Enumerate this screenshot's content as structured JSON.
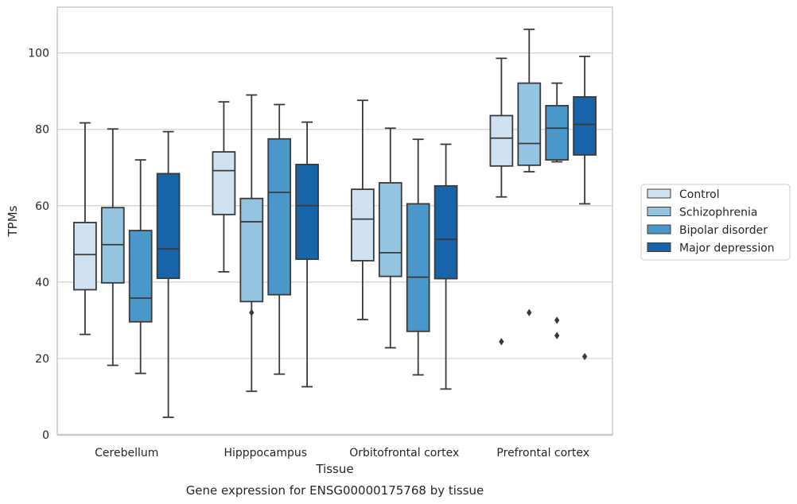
{
  "chart_data": {
    "type": "box",
    "caption": "Gene expression for ENSG00000175768 by tissue",
    "xlabel": "Tissue",
    "ylabel": "TPMs",
    "ylim": [
      0,
      112
    ],
    "yticks": [
      0,
      20,
      40,
      60,
      80,
      100
    ],
    "grid": true,
    "legend_position": "right",
    "categories": [
      "Cerebellum",
      "Hipppocampus",
      "Orbitofrontal cortex",
      "Prefrontal cortex"
    ],
    "series": [
      {
        "name": "Control",
        "color": "#d0e1f2",
        "boxes": [
          {
            "whislo": 26.3,
            "q1": 38.0,
            "med": 47.2,
            "q3": 55.6,
            "whishi": 81.7,
            "fliers": []
          },
          {
            "whislo": 42.7,
            "q1": 57.7,
            "med": 69.2,
            "q3": 74.1,
            "whishi": 87.2,
            "fliers": []
          },
          {
            "whislo": 30.2,
            "q1": 45.6,
            "med": 56.5,
            "q3": 64.3,
            "whishi": 87.6,
            "fliers": []
          },
          {
            "whislo": 62.3,
            "q1": 70.4,
            "med": 77.7,
            "q3": 83.6,
            "whishi": 98.6,
            "fliers": [
              24.4
            ]
          }
        ]
      },
      {
        "name": "Schizophrenia",
        "color": "#94c4df",
        "boxes": [
          {
            "whislo": 18.2,
            "q1": 39.8,
            "med": 49.8,
            "q3": 59.5,
            "whishi": 80.1,
            "fliers": []
          },
          {
            "whislo": 11.4,
            "q1": 34.9,
            "med": 55.8,
            "q3": 61.9,
            "whishi": 89.0,
            "fliers": [
              32.0
            ]
          },
          {
            "whislo": 22.8,
            "q1": 41.5,
            "med": 47.7,
            "q3": 66.0,
            "whishi": 80.3,
            "fliers": []
          },
          {
            "whislo": 68.9,
            "q1": 70.6,
            "med": 76.3,
            "q3": 92.1,
            "whishi": 106.2,
            "fliers": [
              32.0
            ]
          }
        ]
      },
      {
        "name": "Bipolar disorder",
        "color": "#4a98c9",
        "boxes": [
          {
            "whislo": 16.1,
            "q1": 29.6,
            "med": 35.8,
            "q3": 53.5,
            "whishi": 72.0,
            "fliers": []
          },
          {
            "whislo": 15.9,
            "q1": 36.7,
            "med": 63.5,
            "q3": 77.5,
            "whishi": 86.5,
            "fliers": []
          },
          {
            "whislo": 15.7,
            "q1": 27.1,
            "med": 41.3,
            "q3": 60.5,
            "whishi": 77.4,
            "fliers": []
          },
          {
            "whislo": 71.5,
            "q1": 72.0,
            "med": 80.3,
            "q3": 86.2,
            "whishi": 92.1,
            "fliers": [
              26.0,
              30.0
            ]
          }
        ]
      },
      {
        "name": "Major depression",
        "color": "#1764ab",
        "boxes": [
          {
            "whislo": 4.6,
            "q1": 41.0,
            "med": 48.7,
            "q3": 68.4,
            "whishi": 79.4,
            "fliers": []
          },
          {
            "whislo": 12.6,
            "q1": 46.0,
            "med": 60.0,
            "q3": 70.8,
            "whishi": 81.9,
            "fliers": []
          },
          {
            "whislo": 12.0,
            "q1": 40.9,
            "med": 51.2,
            "q3": 65.2,
            "whishi": 76.1,
            "fliers": []
          },
          {
            "whislo": 60.5,
            "q1": 73.3,
            "med": 81.3,
            "q3": 88.5,
            "whishi": 99.1,
            "fliers": [
              20.5
            ]
          }
        ]
      }
    ]
  }
}
